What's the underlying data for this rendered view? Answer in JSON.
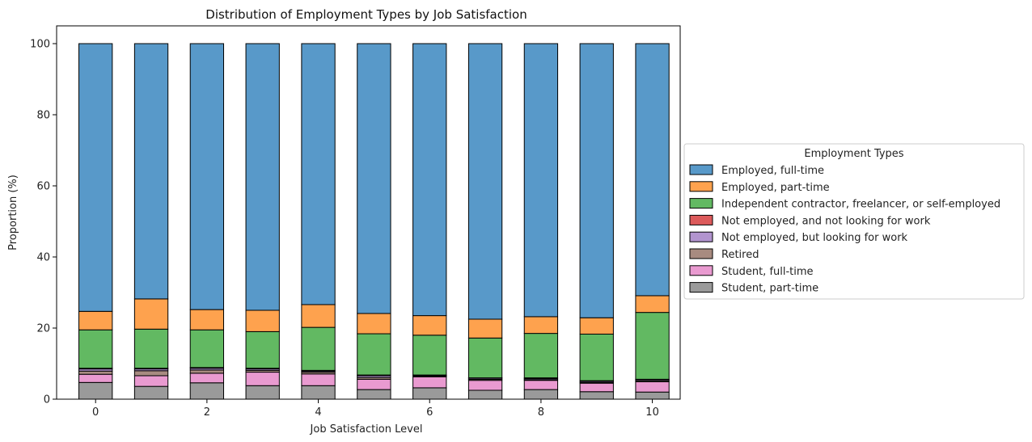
{
  "chart_data": {
    "type": "bar",
    "stacked": true,
    "title": "Distribution of Employment Types by Job Satisfaction",
    "xlabel": "Job Satisfaction Level",
    "ylabel": "Proportion (%)",
    "ylim": [
      0,
      105
    ],
    "xlim": [
      -0.7,
      10.5
    ],
    "x_ticks": [
      0,
      2,
      4,
      6,
      8,
      10
    ],
    "y_ticks": [
      0,
      20,
      40,
      60,
      80,
      100
    ],
    "grid": false,
    "legend": {
      "title": "Employment Types",
      "placement": "right"
    },
    "categories": [
      0,
      1,
      2,
      3,
      4,
      5,
      6,
      7,
      8,
      9,
      10
    ],
    "series": [
      {
        "name": "Student, part-time",
        "color": "#9a9a9a",
        "values": [
          4.7,
          3.6,
          4.6,
          3.8,
          3.8,
          2.7,
          3.2,
          2.5,
          2.7,
          2.1,
          2.0
        ]
      },
      {
        "name": "Student, full-time",
        "color": "#e99ad0",
        "values": [
          2.3,
          3.0,
          2.7,
          3.8,
          3.3,
          2.9,
          3.1,
          2.8,
          2.6,
          2.4,
          2.9
        ]
      },
      {
        "name": "Retired",
        "color": "#a88b80",
        "values": [
          0.9,
          1.4,
          0.9,
          0.5,
          0.5,
          0.5,
          0.2,
          0.3,
          0.2,
          0.2,
          0.3
        ]
      },
      {
        "name": "Not employed, but looking for work",
        "color": "#b294cf",
        "values": [
          0.6,
          0.5,
          0.5,
          0.4,
          0.3,
          0.5,
          0.2,
          0.3,
          0.3,
          0.3,
          0.3
        ]
      },
      {
        "name": "Not employed, and not looking for work",
        "color": "#dc5a5b",
        "values": [
          0.2,
          0.2,
          0.2,
          0.2,
          0.2,
          0.2,
          0.1,
          0.1,
          0.2,
          0.2,
          0.1
        ]
      },
      {
        "name": "Independent contractor, freelancer, or self-employed",
        "color": "#62b962",
        "values": [
          10.8,
          11.0,
          10.6,
          10.3,
          12.1,
          11.6,
          11.2,
          11.2,
          12.5,
          13.1,
          18.8
        ]
      },
      {
        "name": "Employed, part-time",
        "color": "#fea24e",
        "values": [
          5.2,
          8.5,
          5.7,
          6.0,
          6.4,
          5.7,
          5.5,
          5.3,
          4.7,
          4.6,
          4.7
        ]
      },
      {
        "name": "Employed, full-time",
        "color": "#5899c9",
        "values": [
          75.3,
          71.8,
          74.8,
          75.0,
          73.4,
          75.9,
          76.5,
          77.5,
          76.8,
          77.1,
          70.9
        ]
      }
    ],
    "legend_order": [
      "Employed, full-time",
      "Employed, part-time",
      "Independent contractor, freelancer, or self-employed",
      "Not employed, and not looking for work",
      "Not employed, but looking for work",
      "Retired",
      "Student, full-time",
      "Student, part-time"
    ]
  }
}
